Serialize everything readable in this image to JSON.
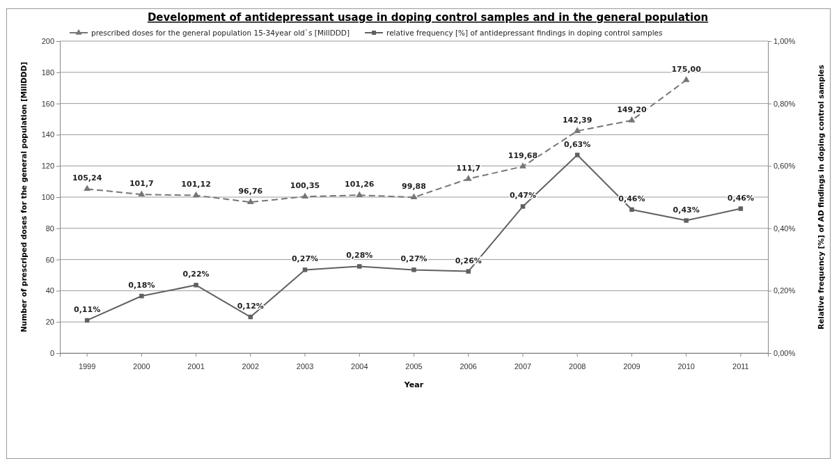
{
  "chart_data": {
    "type": "line",
    "title": "Development of antidepressant usage in doping control samples and in the general population",
    "xlabel": "Year",
    "ylabel": "Number of prescriped doses for the general population  [MillDDD]",
    "y2label": "Relative frequency [%] of AD findings in doping control samples",
    "categories": [
      "1999",
      "2000",
      "2001",
      "2002",
      "2003",
      "2004",
      "2005",
      "2006",
      "2007",
      "2008",
      "2009",
      "2010",
      "2011"
    ],
    "series": [
      {
        "name": "prescribed doses for the general population 15-34year old`s [MillDDD]",
        "color": "#767676",
        "marker": "triangle",
        "line_style": "dashed",
        "values": [
          105.24,
          101.7,
          101.12,
          96.76,
          100.35,
          101.26,
          99.88,
          111.7,
          119.68,
          142.39,
          149.2,
          175,
          null
        ],
        "value_labels": [
          "105,24",
          "101,7",
          "101,12",
          "96,76",
          "100,35",
          "101,26",
          "99,88",
          "111,7",
          "119,68",
          "142,39",
          "149,20",
          "175,00",
          null
        ]
      },
      {
        "name": "relative frequency [%] of antidepressant  findings in doping control samples",
        "color": "#606060",
        "marker": "square",
        "line_style": "solid",
        "axis": "y2",
        "values": [
          0.105,
          0.183,
          0.218,
          0.116,
          0.267,
          0.278,
          0.267,
          0.262,
          0.47,
          0.635,
          0.46,
          0.425,
          0.463
        ],
        "value_labels": [
          "0,11%",
          "0,18%",
          "0,22%",
          "0,12%",
          "0,27%",
          "0,28%",
          "0,27%",
          "0,26%",
          "0,47%",
          "0,63%",
          "0,46%",
          "0,43%",
          "0,46%"
        ]
      }
    ],
    "ylim": [
      0,
      200
    ],
    "yticks": [
      0,
      20,
      40,
      60,
      80,
      100,
      120,
      140,
      160,
      180,
      200
    ],
    "y2lim": [
      0,
      1
    ],
    "y2ticks": [
      {
        "value": 0,
        "label": "0,00%"
      },
      {
        "value": 0.2,
        "label": "0,20%"
      },
      {
        "value": 0.4,
        "label": "0,40%"
      },
      {
        "value": 0.6,
        "label": "0,60%"
      },
      {
        "value": 0.8,
        "label": "0,80%"
      },
      {
        "value": 1,
        "label": "1,00%"
      }
    ],
    "grid": "y",
    "legend": "top"
  }
}
